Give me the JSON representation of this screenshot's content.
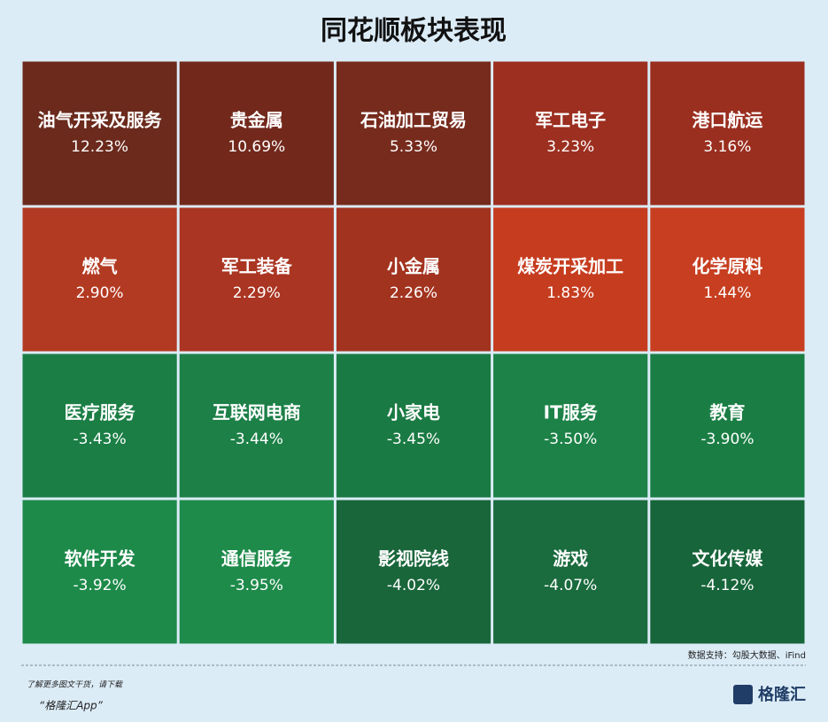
{
  "chart_data": {
    "type": "heatmap",
    "title": "同花顺板块表现",
    "categories": [
      "油气开采及服务",
      "贵金属",
      "石油加工贸易",
      "军工电子",
      "港口航运",
      "燃气",
      "军工装备",
      "小金属",
      "煤炭开采加工",
      "化学原料",
      "医疗服务",
      "互联网电商",
      "小家电",
      "IT服务",
      "教育",
      "软件开发",
      "通信服务",
      "影视院线",
      "游戏",
      "文化传媒"
    ],
    "values": [
      12.23,
      10.69,
      5.33,
      3.23,
      3.16,
      2.9,
      2.29,
      2.26,
      1.83,
      1.44,
      -3.43,
      -3.44,
      -3.45,
      -3.5,
      -3.9,
      -3.92,
      -3.95,
      -4.02,
      -4.07,
      -4.12
    ],
    "value_labels": [
      "12.23%",
      "10.69%",
      "5.33%",
      "3.23%",
      "3.16%",
      "2.90%",
      "2.29%",
      "2.26%",
      "1.83%",
      "1.44%",
      "-3.43%",
      "-3.44%",
      "-3.45%",
      "-3.50%",
      "-3.90%",
      "-3.92%",
      "-3.95%",
      "-4.02%",
      "-4.07%",
      "-4.12%"
    ],
    "colors": [
      "#6b2a1c",
      "#72291c",
      "#762b1d",
      "#9c2f20",
      "#9a2e1f",
      "#b33a22",
      "#aa3522",
      "#a2331f",
      "#c63c1f",
      "#c73e20",
      "#1b7e45",
      "#1c8047",
      "#1a7a43",
      "#1c8247",
      "#1a7e44",
      "#1d8a4a",
      "#1e8b4b",
      "#19663a",
      "#1a6b3d",
      "#17653a"
    ],
    "source": "数据支持：勾股大数据、iFind"
  },
  "footer": {
    "line1": "了解更多图文干货，请下载",
    "line2": "“格隆汇App”",
    "logo": "格隆汇"
  }
}
